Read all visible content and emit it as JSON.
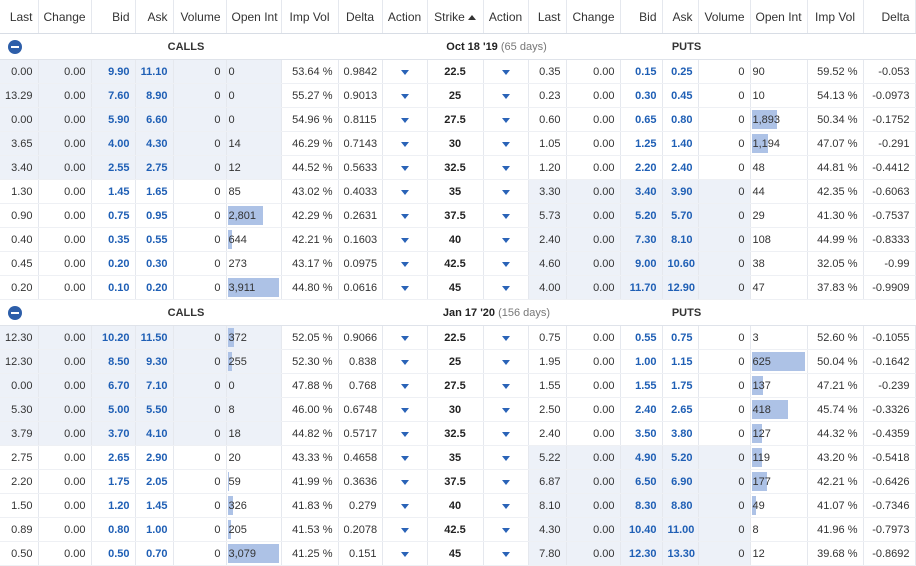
{
  "columns": [
    "Last",
    "Change",
    "Bid",
    "Ask",
    "Volume",
    "Open Int",
    "Imp Vol",
    "Delta",
    "Action",
    "Strike",
    "Action",
    "Last",
    "Change",
    "Bid",
    "Ask",
    "Volume",
    "Open Int",
    "Imp Vol",
    "Delta"
  ],
  "sections": [
    {
      "calls_label": "CALLS",
      "puts_label": "PUTS",
      "date": "Oct 18 '19",
      "days": "(65 days)",
      "rows": [
        {
          "strike": "22.5",
          "call": {
            "last": "0.00",
            "change": "0.00",
            "bid": "9.90",
            "ask": "11.10",
            "volume": "0",
            "oi": "0",
            "oi_fill": 0,
            "iv": "53.64 %",
            "delta": "0.9842",
            "itm": true
          },
          "put": {
            "last": "0.35",
            "change": "0.00",
            "bid": "0.15",
            "ask": "0.25",
            "volume": "0",
            "oi": "90",
            "oi_fill": 0,
            "iv": "59.52 %",
            "delta": "-0.053",
            "itm": false
          }
        },
        {
          "strike": "25",
          "call": {
            "last": "13.29",
            "change": "0.00",
            "bid": "7.60",
            "ask": "8.90",
            "volume": "0",
            "oi": "0",
            "oi_fill": 0,
            "iv": "55.27 %",
            "delta": "0.9013",
            "itm": true
          },
          "put": {
            "last": "0.23",
            "change": "0.00",
            "bid": "0.30",
            "ask": "0.45",
            "volume": "0",
            "oi": "10",
            "oi_fill": 0,
            "iv": "54.13 %",
            "delta": "-0.0973",
            "itm": false
          }
        },
        {
          "strike": "27.5",
          "call": {
            "last": "0.00",
            "change": "0.00",
            "bid": "5.90",
            "ask": "6.60",
            "volume": "0",
            "oi": "0",
            "oi_fill": 0,
            "iv": "54.96 %",
            "delta": "0.8115",
            "itm": true
          },
          "put": {
            "last": "0.60",
            "change": "0.00",
            "bid": "0.65",
            "ask": "0.80",
            "volume": "0",
            "oi": "1,893",
            "oi_fill": 0.48,
            "iv": "50.34 %",
            "delta": "-0.1752",
            "itm": false
          }
        },
        {
          "strike": "30",
          "call": {
            "last": "3.65",
            "change": "0.00",
            "bid": "4.00",
            "ask": "4.30",
            "volume": "0",
            "oi": "14",
            "oi_fill": 0,
            "iv": "46.29 %",
            "delta": "0.7143",
            "itm": true
          },
          "put": {
            "last": "1.05",
            "change": "0.00",
            "bid": "1.25",
            "ask": "1.40",
            "volume": "0",
            "oi": "1,194",
            "oi_fill": 0.31,
            "iv": "47.07 %",
            "delta": "-0.291",
            "itm": false
          }
        },
        {
          "strike": "32.5",
          "call": {
            "last": "3.40",
            "change": "0.00",
            "bid": "2.55",
            "ask": "2.75",
            "volume": "0",
            "oi": "12",
            "oi_fill": 0,
            "iv": "44.52 %",
            "delta": "0.5633",
            "itm": true
          },
          "put": {
            "last": "1.20",
            "change": "0.00",
            "bid": "2.20",
            "ask": "2.40",
            "volume": "0",
            "oi": "48",
            "oi_fill": 0,
            "iv": "44.81 %",
            "delta": "-0.4412",
            "itm": false
          }
        },
        {
          "strike": "35",
          "call": {
            "last": "1.30",
            "change": "0.00",
            "bid": "1.45",
            "ask": "1.65",
            "volume": "0",
            "oi": "85",
            "oi_fill": 0,
            "iv": "43.02 %",
            "delta": "0.4033",
            "itm": false
          },
          "put": {
            "last": "3.30",
            "change": "0.00",
            "bid": "3.40",
            "ask": "3.90",
            "volume": "0",
            "oi": "44",
            "oi_fill": 0,
            "iv": "42.35 %",
            "delta": "-0.6063",
            "itm": true
          }
        },
        {
          "strike": "37.5",
          "call": {
            "last": "0.90",
            "change": "0.00",
            "bid": "0.75",
            "ask": "0.95",
            "volume": "0",
            "oi": "2,801",
            "oi_fill": 0.69,
            "iv": "42.29 %",
            "delta": "0.2631",
            "itm": false
          },
          "put": {
            "last": "5.73",
            "change": "0.00",
            "bid": "5.20",
            "ask": "5.70",
            "volume": "0",
            "oi": "29",
            "oi_fill": 0,
            "iv": "41.30 %",
            "delta": "-0.7537",
            "itm": true
          }
        },
        {
          "strike": "40",
          "call": {
            "last": "0.40",
            "change": "0.00",
            "bid": "0.35",
            "ask": "0.55",
            "volume": "0",
            "oi": "644",
            "oi_fill": 0.08,
            "iv": "42.21 %",
            "delta": "0.1603",
            "itm": false
          },
          "put": {
            "last": "2.40",
            "change": "0.00",
            "bid": "7.30",
            "ask": "8.10",
            "volume": "0",
            "oi": "108",
            "oi_fill": 0,
            "iv": "44.99 %",
            "delta": "-0.8333",
            "itm": true
          }
        },
        {
          "strike": "42.5",
          "call": {
            "last": "0.45",
            "change": "0.00",
            "bid": "0.20",
            "ask": "0.30",
            "volume": "0",
            "oi": "273",
            "oi_fill": 0,
            "iv": "43.17 %",
            "delta": "0.0975",
            "itm": false
          },
          "put": {
            "last": "4.60",
            "change": "0.00",
            "bid": "9.00",
            "ask": "10.60",
            "volume": "0",
            "oi": "38",
            "oi_fill": 0,
            "iv": "32.05 %",
            "delta": "-0.99",
            "itm": true
          }
        },
        {
          "strike": "45",
          "call": {
            "last": "0.20",
            "change": "0.00",
            "bid": "0.10",
            "ask": "0.20",
            "volume": "0",
            "oi": "3,911",
            "oi_fill": 1.0,
            "iv": "44.80 %",
            "delta": "0.0616",
            "itm": false
          },
          "put": {
            "last": "4.00",
            "change": "0.00",
            "bid": "11.70",
            "ask": "12.90",
            "volume": "0",
            "oi": "47",
            "oi_fill": 0,
            "iv": "37.83 %",
            "delta": "-0.9909",
            "itm": true
          }
        }
      ]
    },
    {
      "calls_label": "CALLS",
      "puts_label": "PUTS",
      "date": "Jan 17 '20",
      "days": "(156 days)",
      "rows": [
        {
          "strike": "22.5",
          "call": {
            "last": "12.30",
            "change": "0.00",
            "bid": "10.20",
            "ask": "11.50",
            "volume": "0",
            "oi": "372",
            "oi_fill": 0.12,
            "iv": "52.05 %",
            "delta": "0.9066",
            "itm": true
          },
          "put": {
            "last": "0.75",
            "change": "0.00",
            "bid": "0.55",
            "ask": "0.75",
            "volume": "0",
            "oi": "3",
            "oi_fill": 0,
            "iv": "52.60 %",
            "delta": "-0.1055",
            "itm": false
          }
        },
        {
          "strike": "25",
          "call": {
            "last": "12.30",
            "change": "0.00",
            "bid": "8.50",
            "ask": "9.30",
            "volume": "0",
            "oi": "255",
            "oi_fill": 0.08,
            "iv": "52.30 %",
            "delta": "0.838",
            "itm": true
          },
          "put": {
            "last": "1.95",
            "change": "0.00",
            "bid": "1.00",
            "ask": "1.15",
            "volume": "0",
            "oi": "625",
            "oi_fill": 1.0,
            "iv": "50.04 %",
            "delta": "-0.1642",
            "itm": false
          }
        },
        {
          "strike": "27.5",
          "call": {
            "last": "0.00",
            "change": "0.00",
            "bid": "6.70",
            "ask": "7.10",
            "volume": "0",
            "oi": "0",
            "oi_fill": 0,
            "iv": "47.88 %",
            "delta": "0.768",
            "itm": true
          },
          "put": {
            "last": "1.55",
            "change": "0.00",
            "bid": "1.55",
            "ask": "1.75",
            "volume": "0",
            "oi": "137",
            "oi_fill": 0.22,
            "iv": "47.21 %",
            "delta": "-0.239",
            "itm": false
          }
        },
        {
          "strike": "30",
          "call": {
            "last": "5.30",
            "change": "0.00",
            "bid": "5.00",
            "ask": "5.50",
            "volume": "0",
            "oi": "8",
            "oi_fill": 0,
            "iv": "46.00 %",
            "delta": "0.6748",
            "itm": true
          },
          "put": {
            "last": "2.50",
            "change": "0.00",
            "bid": "2.40",
            "ask": "2.65",
            "volume": "0",
            "oi": "418",
            "oi_fill": 0.67,
            "iv": "45.74 %",
            "delta": "-0.3326",
            "itm": false
          }
        },
        {
          "strike": "32.5",
          "call": {
            "last": "3.79",
            "change": "0.00",
            "bid": "3.70",
            "ask": "4.10",
            "volume": "0",
            "oi": "18",
            "oi_fill": 0,
            "iv": "44.82 %",
            "delta": "0.5717",
            "itm": true
          },
          "put": {
            "last": "2.40",
            "change": "0.00",
            "bid": "3.50",
            "ask": "3.80",
            "volume": "0",
            "oi": "127",
            "oi_fill": 0.2,
            "iv": "44.32 %",
            "delta": "-0.4359",
            "itm": false
          }
        },
        {
          "strike": "35",
          "call": {
            "last": "2.75",
            "change": "0.00",
            "bid": "2.65",
            "ask": "2.90",
            "volume": "0",
            "oi": "20",
            "oi_fill": 0,
            "iv": "43.33 %",
            "delta": "0.4658",
            "itm": false
          },
          "put": {
            "last": "5.22",
            "change": "0.00",
            "bid": "4.90",
            "ask": "5.20",
            "volume": "0",
            "oi": "119",
            "oi_fill": 0.19,
            "iv": "43.20 %",
            "delta": "-0.5418",
            "itm": true
          }
        },
        {
          "strike": "37.5",
          "call": {
            "last": "2.20",
            "change": "0.00",
            "bid": "1.75",
            "ask": "2.05",
            "volume": "0",
            "oi": "59",
            "oi_fill": 0.02,
            "iv": "41.99 %",
            "delta": "0.3636",
            "itm": false
          },
          "put": {
            "last": "6.87",
            "change": "0.00",
            "bid": "6.50",
            "ask": "6.90",
            "volume": "0",
            "oi": "177",
            "oi_fill": 0.28,
            "iv": "42.21 %",
            "delta": "-0.6426",
            "itm": true
          }
        },
        {
          "strike": "40",
          "call": {
            "last": "1.50",
            "change": "0.00",
            "bid": "1.20",
            "ask": "1.45",
            "volume": "0",
            "oi": "326",
            "oi_fill": 0.11,
            "iv": "41.83 %",
            "delta": "0.279",
            "itm": false
          },
          "put": {
            "last": "8.10",
            "change": "0.00",
            "bid": "8.30",
            "ask": "8.80",
            "volume": "0",
            "oi": "49",
            "oi_fill": 0.08,
            "iv": "41.07 %",
            "delta": "-0.7346",
            "itm": true
          }
        },
        {
          "strike": "42.5",
          "call": {
            "last": "0.89",
            "change": "0.00",
            "bid": "0.80",
            "ask": "1.00",
            "volume": "0",
            "oi": "205",
            "oi_fill": 0.07,
            "iv": "41.53 %",
            "delta": "0.2078",
            "itm": false
          },
          "put": {
            "last": "4.30",
            "change": "0.00",
            "bid": "10.40",
            "ask": "11.00",
            "volume": "0",
            "oi": "8",
            "oi_fill": 0,
            "iv": "41.96 %",
            "delta": "-0.7973",
            "itm": true
          }
        },
        {
          "strike": "45",
          "call": {
            "last": "0.50",
            "change": "0.00",
            "bid": "0.50",
            "ask": "0.70",
            "volume": "0",
            "oi": "3,079",
            "oi_fill": 1.0,
            "iv": "41.25 %",
            "delta": "0.151",
            "itm": false
          },
          "put": {
            "last": "7.80",
            "change": "0.00",
            "bid": "12.30",
            "ask": "13.30",
            "volume": "0",
            "oi": "12",
            "oi_fill": 0,
            "iv": "39.68 %",
            "delta": "-0.8692",
            "itm": true
          }
        }
      ]
    }
  ],
  "colors": {
    "itm_background": "#edf1f8",
    "oi_bar": "#adc2e6",
    "bid_ask_text": "#1f5fb5",
    "collapse_button": "#2d5ea9"
  },
  "icons": {
    "collapse": "minus-circle-icon",
    "action": "caret-down-icon",
    "sort": "sort-ascending-icon"
  }
}
